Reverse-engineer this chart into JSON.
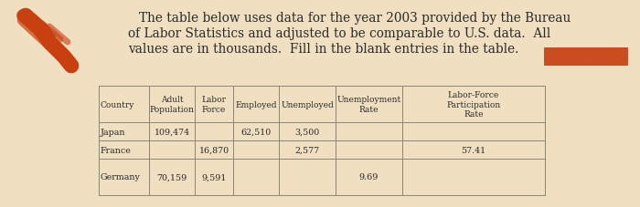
{
  "bg_color": "#f0dfc0",
  "text_color": "#2a2a2a",
  "title_lines": [
    "The table below uses data for the year 2003 provided by the Bureau",
    "of Labor Statistics and adjusted to be comparable to U.S. data.  All",
    "values are in thousands.  Fill in the blank entries in the table."
  ],
  "rows": [
    [
      "Japan",
      "109,474",
      "",
      "62,510",
      "3,500",
      "",
      ""
    ],
    [
      "France",
      "",
      "16,870",
      "",
      "2,577",
      "",
      "57.41"
    ],
    [
      "Germany",
      "70,159",
      "9,591",
      "",
      "",
      "9.69",
      ""
    ]
  ],
  "orange_color": "#c84010",
  "header_lines": [
    [
      "",
      "Adult",
      "Labor",
      "",
      "",
      "Unemployment",
      "Labor-Force"
    ],
    [
      "Country",
      "Population",
      "Force",
      "Employed",
      "Unemployed",
      "Rate",
      "Participation"
    ],
    [
      "",
      "",
      "",
      "",
      "",
      "",
      "Rate"
    ]
  ]
}
